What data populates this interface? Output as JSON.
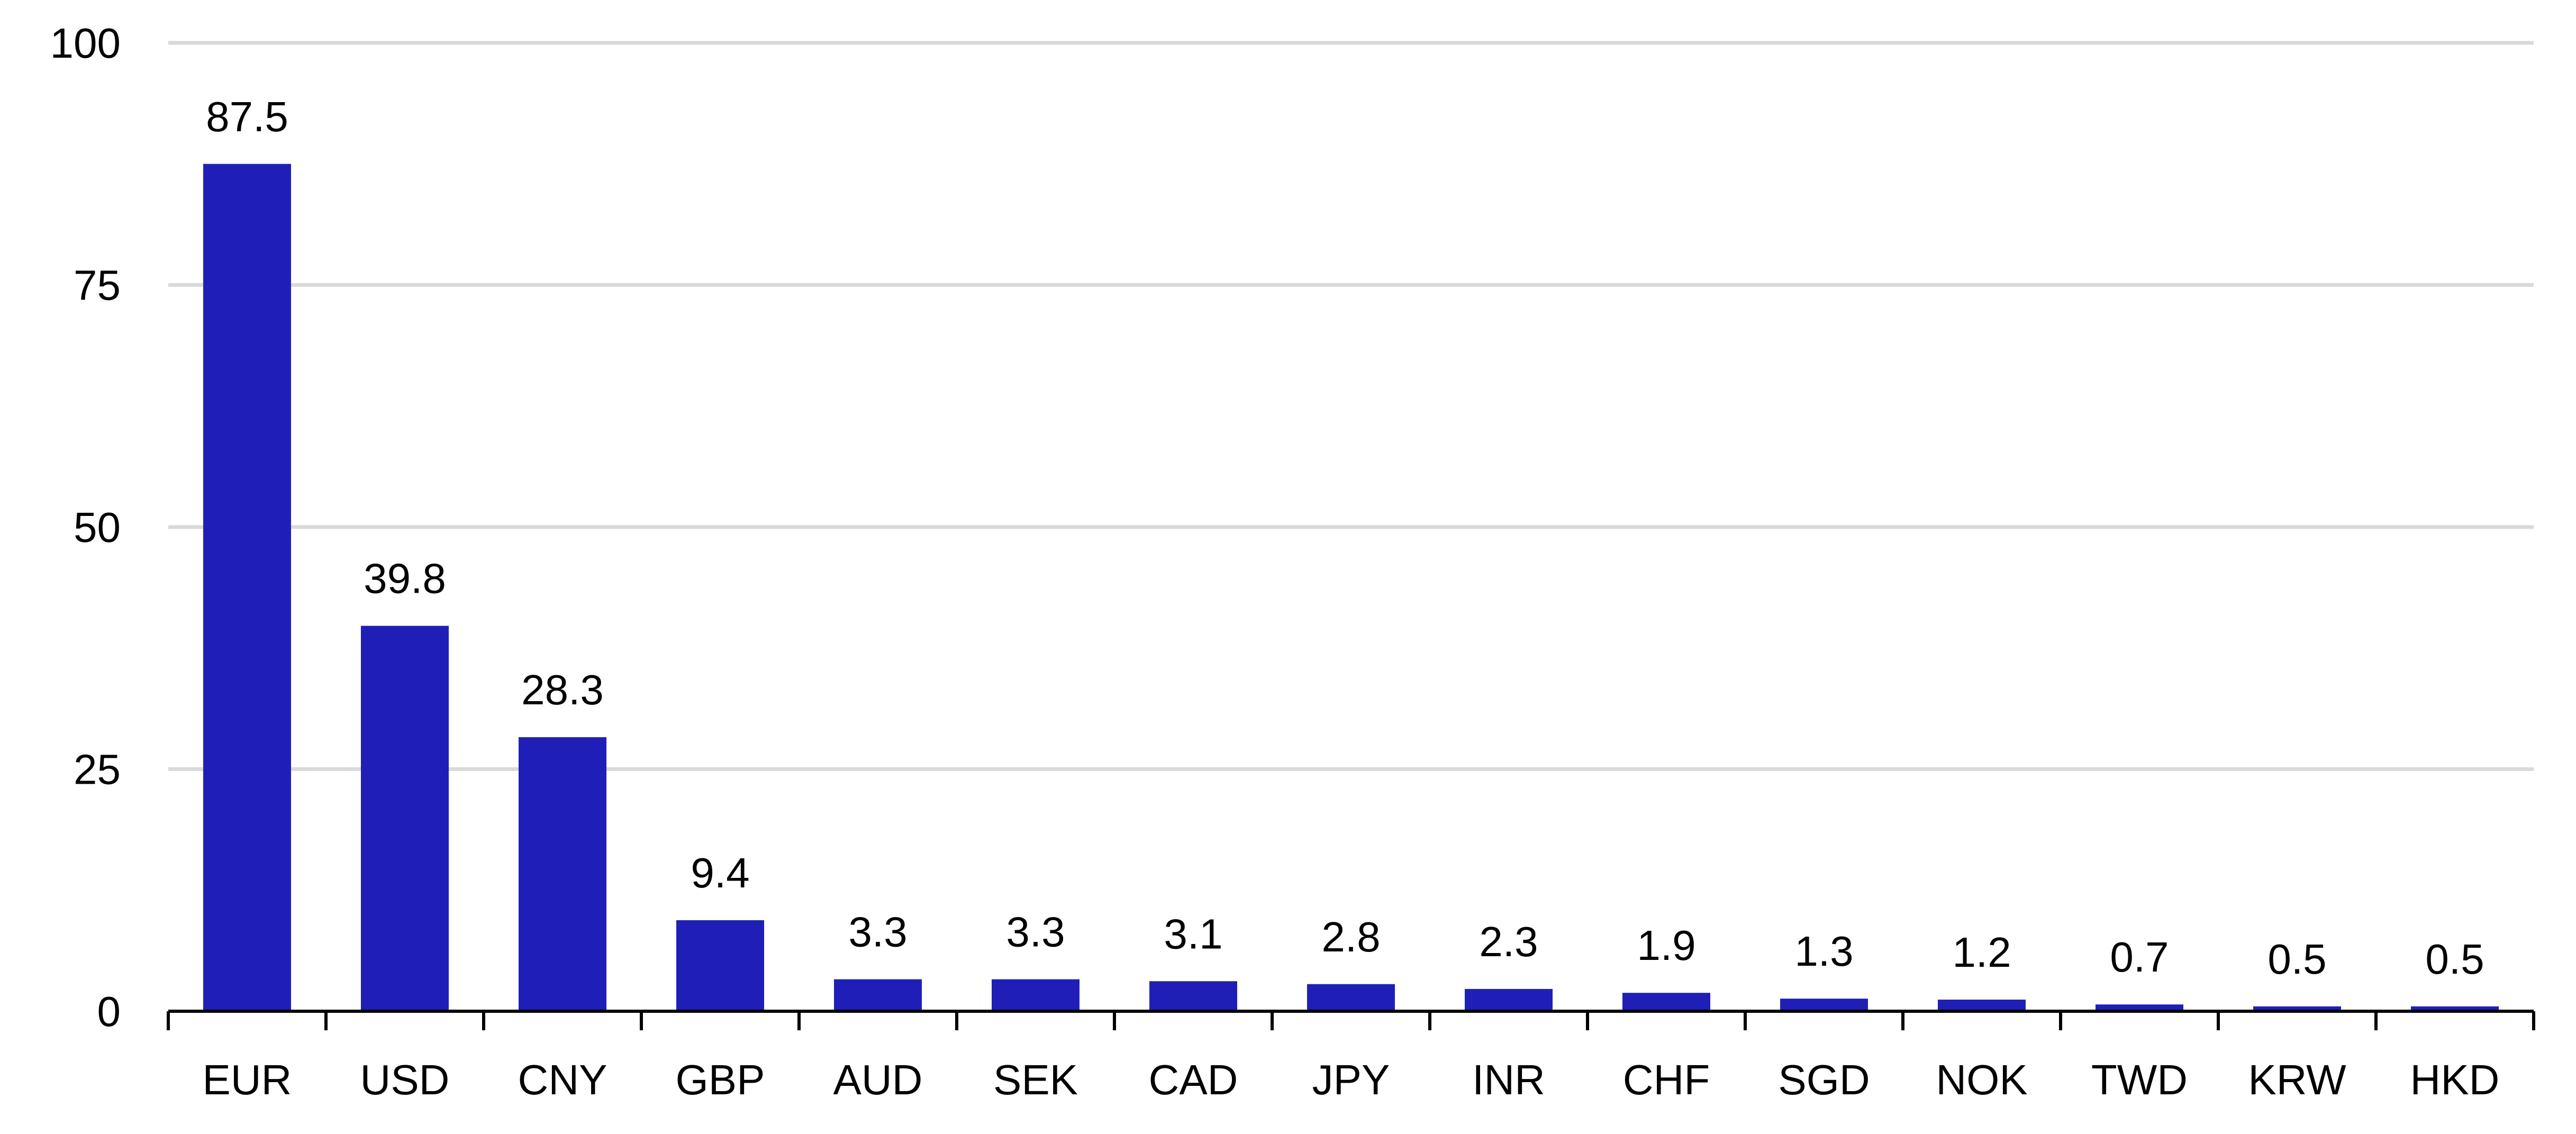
{
  "chart_data": {
    "type": "bar",
    "title": "",
    "xlabel": "",
    "ylabel": "",
    "categories": [
      "EUR",
      "USD",
      "CNY",
      "GBP",
      "AUD",
      "SEK",
      "CAD",
      "JPY",
      "INR",
      "CHF",
      "SGD",
      "NOK",
      "TWD",
      "KRW",
      "HKD"
    ],
    "values": [
      87.5,
      39.8,
      28.3,
      9.4,
      3.3,
      3.3,
      3.1,
      2.8,
      2.3,
      1.9,
      1.3,
      1.2,
      0.7,
      0.5,
      0.5
    ],
    "data_labels": [
      "87.5",
      "39.8",
      "28.3",
      "9.4",
      "3.3",
      "3.3",
      "3.1",
      "2.8",
      "2.3",
      "1.9",
      "1.3",
      "1.2",
      "0.7",
      "0.5",
      "0.5"
    ],
    "yticks": [
      0,
      25,
      50,
      75,
      100
    ],
    "ylim": [
      0,
      100
    ],
    "grid": true,
    "legend": "none",
    "bar_color": "#1f1fb8"
  }
}
